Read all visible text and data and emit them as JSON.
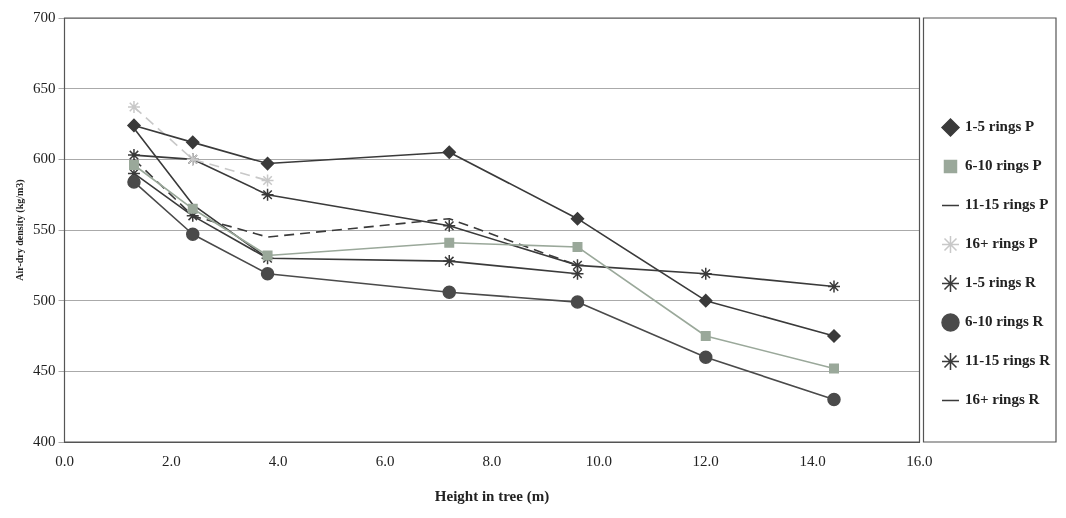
{
  "chart_data": {
    "type": "line",
    "xlabel": "Height in tree (m)",
    "ylabel": "Air-dry density (kg/m3)",
    "xlim": [
      0,
      16
    ],
    "xticks": [
      {
        "value": 0,
        "label": "0.0"
      },
      {
        "value": 2,
        "label": "2.0"
      },
      {
        "value": 4,
        "label": "4.0"
      },
      {
        "value": 6,
        "label": "6.0"
      },
      {
        "value": 8,
        "label": "8.0"
      },
      {
        "value": 10,
        "label": "10.0"
      },
      {
        "value": 12,
        "label": "12.0"
      },
      {
        "value": 14,
        "label": "14.0"
      },
      {
        "value": 16,
        "label": "16.0"
      }
    ],
    "ylim": [
      400,
      700
    ],
    "yticks": [
      400,
      450,
      500,
      550,
      600,
      650,
      700
    ],
    "x": [
      1.3,
      2.4,
      3.8,
      7.2,
      9.6,
      12.0,
      14.4
    ],
    "grid": "y",
    "legend": "right",
    "line_style": "solid",
    "series": [
      {
        "name": "1-5 rings P",
        "color": "#3a3a3a",
        "marker": "diamond",
        "values": [
          624,
          612,
          597,
          605,
          558,
          500,
          475
        ]
      },
      {
        "name": "6-10 rings P",
        "color": "#9aa89a",
        "marker": "square",
        "values": [
          596,
          565,
          532,
          541,
          538,
          475,
          452
        ]
      },
      {
        "name": "11-15 rings P",
        "color": "#3a3a3a",
        "marker": "none",
        "line_style": "dashed",
        "values": [
          600,
          560,
          545,
          558,
          525,
          null,
          null
        ]
      },
      {
        "name": "16+ rings P",
        "color": "#c8c8c8",
        "marker": "cross",
        "line_style": "dashed",
        "values": [
          637,
          600,
          585,
          null,
          null,
          null,
          null
        ]
      },
      {
        "name": "1-5 rings R",
        "color": "#3a3a3a",
        "marker": "cross",
        "values": [
          603,
          600,
          575,
          553,
          525,
          519,
          510
        ]
      },
      {
        "name": "6-10 rings R",
        "color": "#4a4a4a",
        "marker": "circle",
        "values": [
          584,
          547,
          519,
          506,
          499,
          460,
          430
        ]
      },
      {
        "name": "11-15 rings R",
        "color": "#3a3a3a",
        "marker": "cross",
        "values": [
          590,
          560,
          530,
          528,
          519,
          null,
          null
        ]
      },
      {
        "name": "16+ rings R",
        "color": "#3a3a3a",
        "marker": "none",
        "values": [
          622,
          568,
          530,
          null,
          null,
          null,
          null
        ]
      }
    ]
  }
}
